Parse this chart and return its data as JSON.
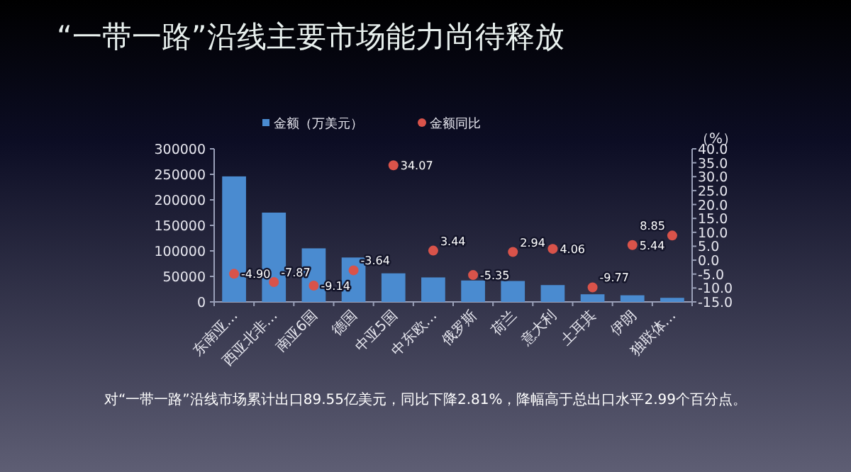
{
  "chart_data": {
    "type": "bar",
    "title": "“一带一路”沿线主要市场能力尚待释放",
    "categories": [
      "东南亚…",
      "西亚北非…",
      "南亚6国",
      "德国",
      "中亚5国",
      "中东欧…",
      "俄罗斯",
      "荷兰",
      "意大利",
      "土耳其",
      "伊朗",
      "独联体…"
    ],
    "series": [
      {
        "name": "金额（万美元）",
        "color": "#4a8bd0",
        "values": [
          246000,
          175000,
          105000,
          87000,
          56000,
          48000,
          42000,
          41000,
          33000,
          15000,
          13000,
          8000
        ]
      },
      {
        "name": "金额同比",
        "type": "scatter",
        "axis": "y2",
        "color": "#d9534a",
        "values": [
          -4.9,
          -7.87,
          -9.14,
          -3.64,
          34.07,
          3.44,
          -5.35,
          2.94,
          4.06,
          -9.77,
          5.44,
          8.85
        ],
        "value_labels": [
          "-4.90",
          "-7.87",
          "-9.14",
          "-3.64",
          "34.07",
          "3.44",
          "-5.35",
          "2.94",
          "4.06",
          "-9.77",
          "5.44",
          "8.85"
        ]
      }
    ],
    "ylim": [
      0,
      300000
    ],
    "yticks": [
      0,
      50000,
      100000,
      150000,
      200000,
      250000,
      300000
    ],
    "y2label": "（%）",
    "y2lim": [
      -15,
      40
    ],
    "y2ticks": [
      {
        "value": -15,
        "label": "-15.0"
      },
      {
        "value": -10,
        "label": "-10.0"
      },
      {
        "value": -5,
        "label": "-5.0"
      },
      {
        "value": 0,
        "label": "0.0"
      },
      {
        "value": 5,
        "label": "5.0"
      },
      {
        "value": 10,
        "label": "10.0"
      },
      {
        "value": 15,
        "label": "15.0"
      },
      {
        "value": 20,
        "label": "20.0"
      },
      {
        "value": 25,
        "label": "25.0"
      },
      {
        "value": 30,
        "label": "30.0"
      },
      {
        "value": 35,
        "label": "35.0"
      },
      {
        "value": 40,
        "label": "40.0"
      }
    ],
    "legend": "top",
    "grid": false,
    "marker": "circle",
    "annotations": [
      "对“一带一路”沿线市场累计出口89.55亿美元，同比下降2.81%，降幅高于总出口水平2.99个百分点。"
    ]
  }
}
